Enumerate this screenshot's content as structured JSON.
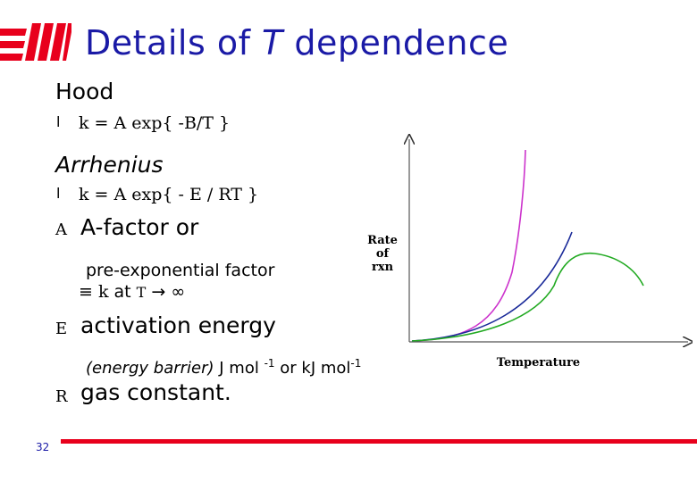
{
  "colors": {
    "title": "#1a1aa6",
    "accent": "#e8001c",
    "curve_purple": "#cc33cc",
    "curve_blue": "#1a2a99",
    "curve_green": "#22aa22"
  },
  "slide": {
    "title_prefix": "Details of ",
    "title_var": "T",
    "title_suffix": " dependence",
    "hood": {
      "heading": "Hood",
      "bullet": "l",
      "equation": "k = A exp{ -B/T }"
    },
    "arrhenius": {
      "heading": "Arrhenius",
      "bullet": "l",
      "equation": "k = A exp{ - E / RT }"
    },
    "defs": {
      "a_symbol": "A",
      "a_text": "A-factor or",
      "a_sub": "pre-exponential factor",
      "a_limit_symbol": "≡ k",
      "a_limit_at": " at ",
      "a_limit_T": "T",
      "a_limit_arrow": " → ∞",
      "e_symbol": "E",
      "e_text": "activation energy",
      "e_sub_italic": "(energy barrier)",
      "e_sub_units_a": " J mol ",
      "e_sub_sup1": "-1",
      "e_sub_units_b": " or kJ mol",
      "e_sub_sup2": "-1",
      "r_symbol": "R",
      "r_text": "gas constant."
    },
    "graph": {
      "ylabel_line1": "Rate",
      "ylabel_line2": "of",
      "ylabel_line3": "rxn",
      "xlabel": "Temperature"
    },
    "page_number": "32"
  }
}
